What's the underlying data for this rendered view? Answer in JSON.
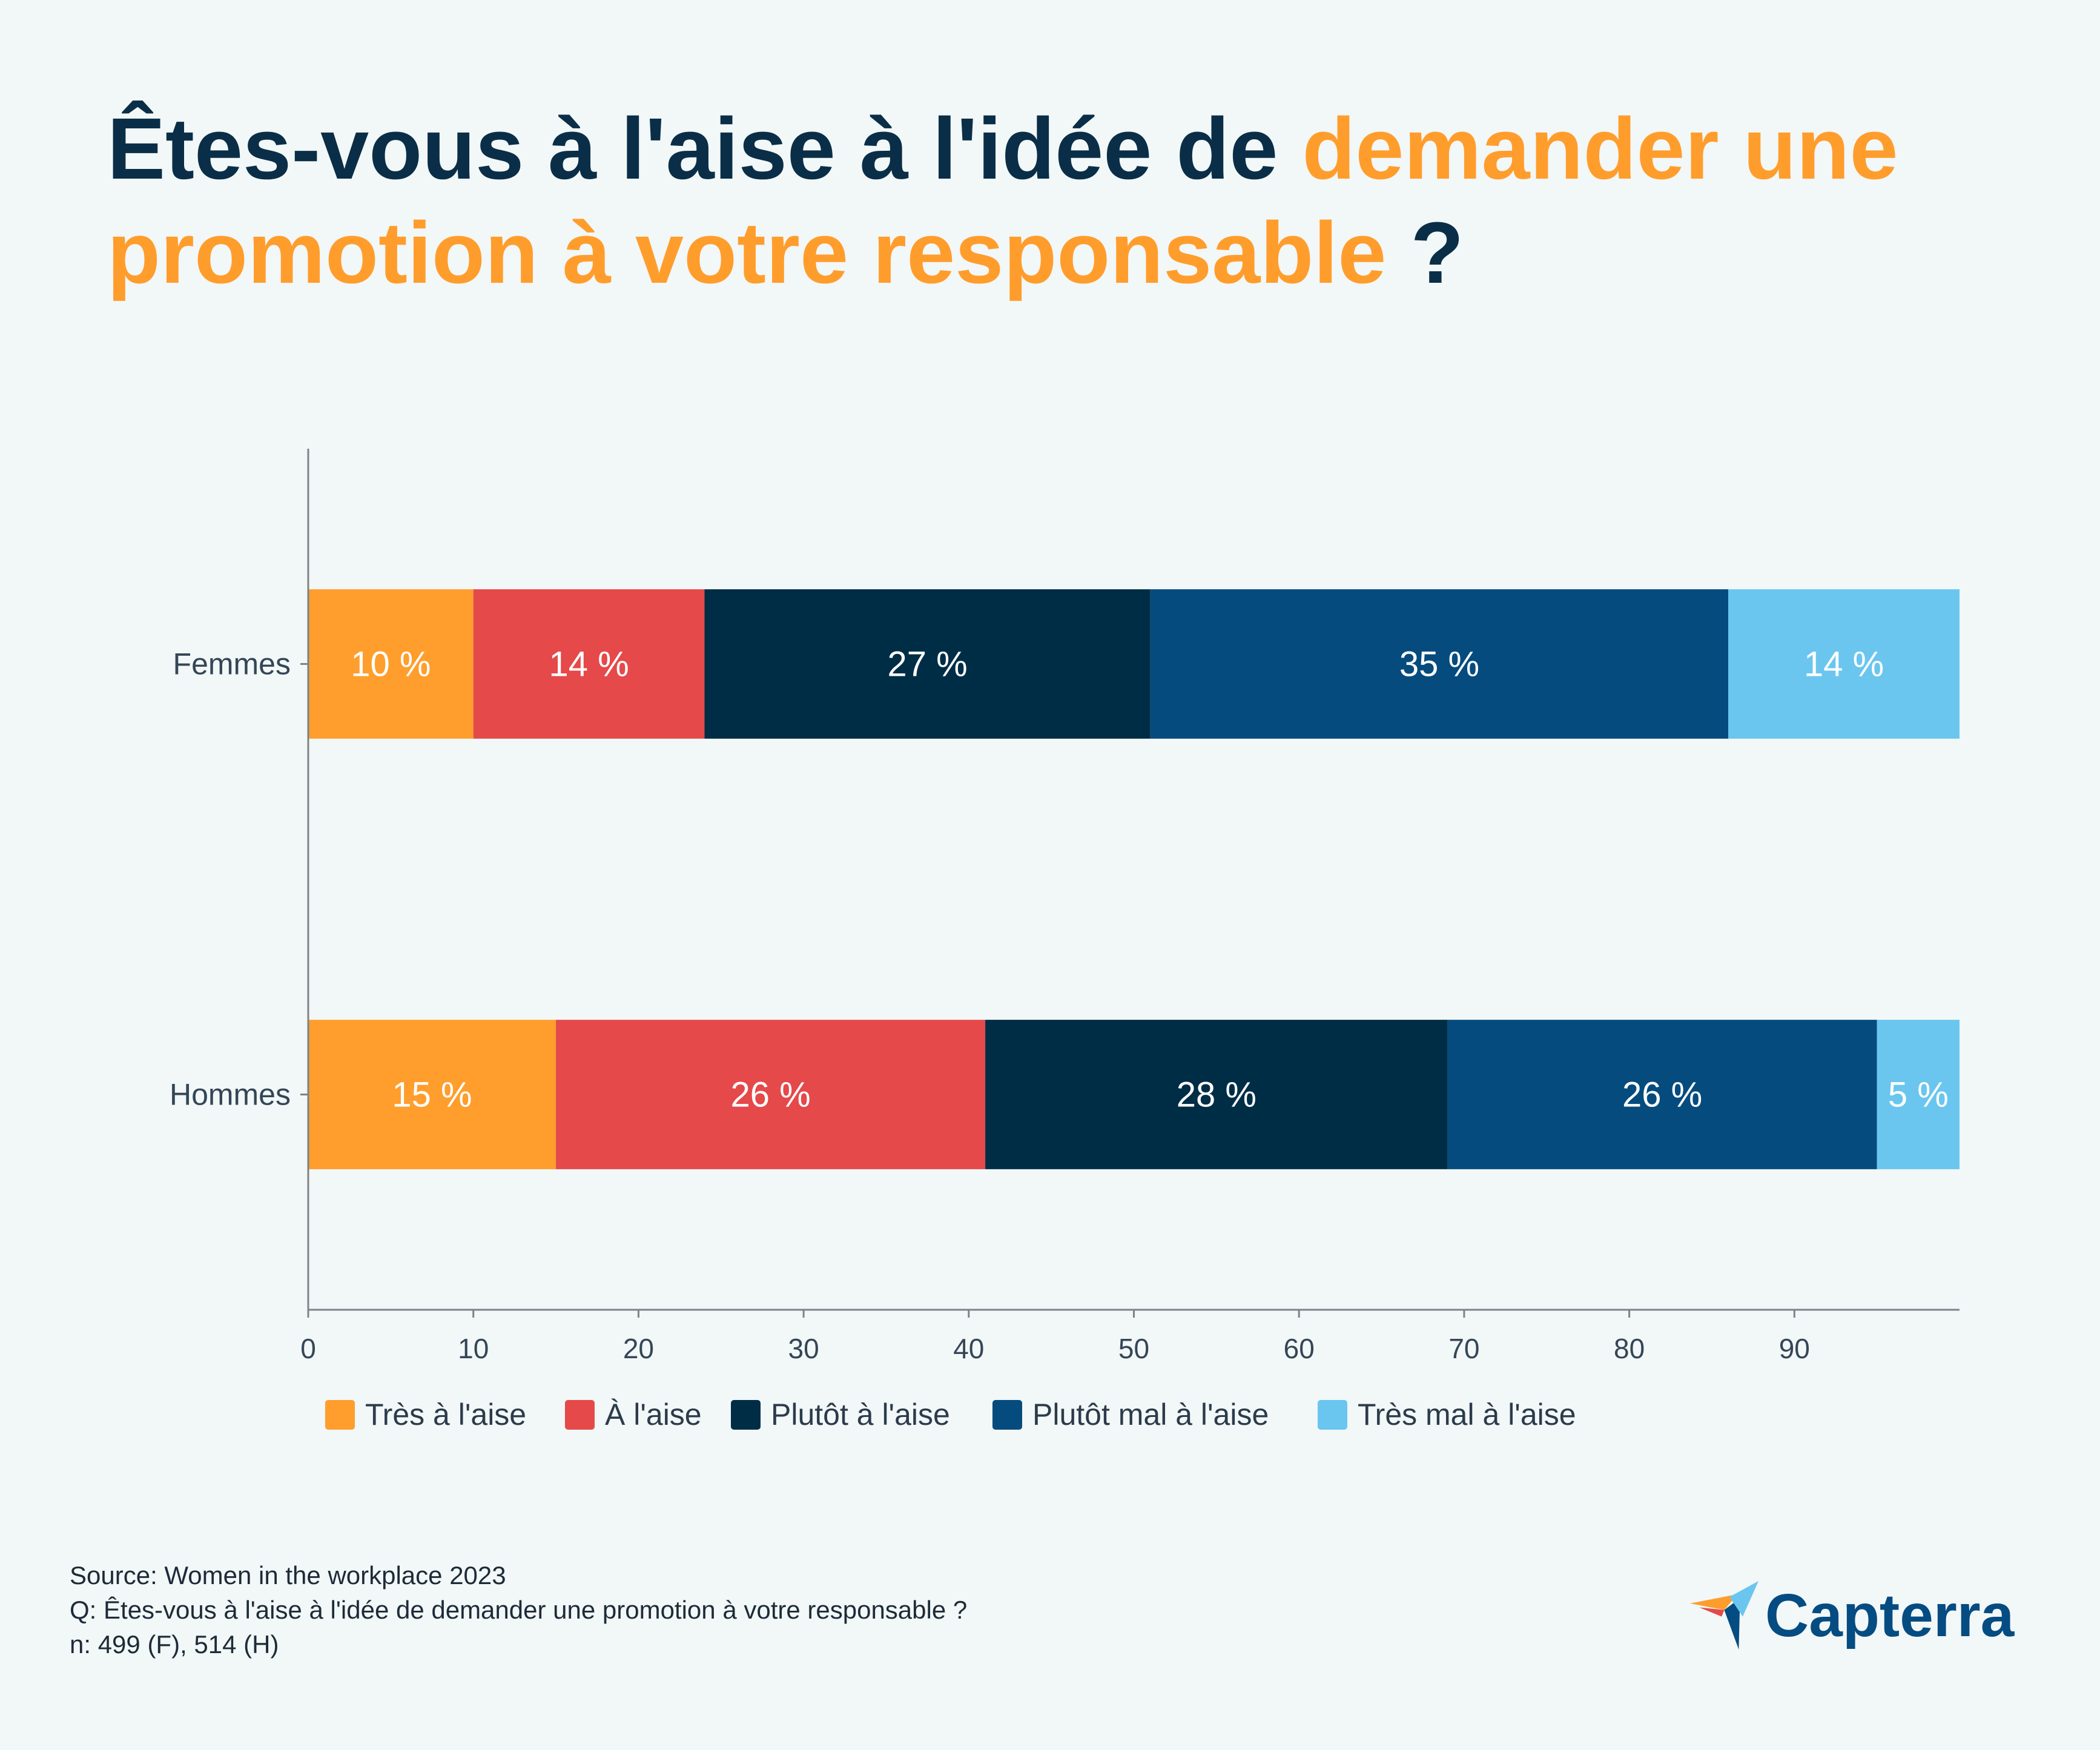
{
  "title": {
    "line1_dark": "Êtes-vous à l'aise à l'idée de ",
    "line1_highlight": "demander une",
    "line2_highlight": "promotion à votre responsable",
    "line2_dark": " ?"
  },
  "colors": {
    "background": "#F2F7F7",
    "title_dark": "#0A2E47",
    "title_highlight": "#FF9D2C",
    "axis": "#7D8388",
    "axis_text": "#344656",
    "bar_label": "#FFFFFF",
    "brand": "#044C81"
  },
  "chart_data": {
    "type": "bar",
    "orientation": "horizontal",
    "stacked": true,
    "title": "Êtes-vous à l'aise à l'idée de demander une promotion à votre responsable ?",
    "categories": [
      "Femmes",
      "Hommes"
    ],
    "series": [
      {
        "name": "Très à l'aise",
        "color": "#FF9E2D",
        "values": [
          10,
          15
        ]
      },
      {
        "name": "À l'aise",
        "color": "#E5494A",
        "values": [
          14,
          26
        ]
      },
      {
        "name": "Plutôt à l'aise",
        "color": "#002D46",
        "values": [
          27,
          28
        ]
      },
      {
        "name": "Plutôt mal à l'aise",
        "color": "#054B7E",
        "values": [
          35,
          26
        ]
      },
      {
        "name": "Très mal à l'aise",
        "color": "#6AC6EF",
        "values": [
          14,
          5
        ]
      }
    ],
    "value_suffix": " %",
    "xlim": [
      0,
      100
    ],
    "xticks": [
      0,
      10,
      20,
      30,
      40,
      50,
      60,
      70,
      80,
      90
    ],
    "xlabel": "",
    "ylabel": "",
    "grid": false,
    "legend_position": "bottom"
  },
  "footer": {
    "source": "Source: Women in the workplace 2023",
    "question": "Q: Êtes-vous à l'aise à l'idée de demander une promotion à votre responsable ?",
    "sample": "n: 499 (F), 514 (H)"
  },
  "brand": {
    "name": "Capterra",
    "logo_icon": "capterra-arrow-icon"
  }
}
